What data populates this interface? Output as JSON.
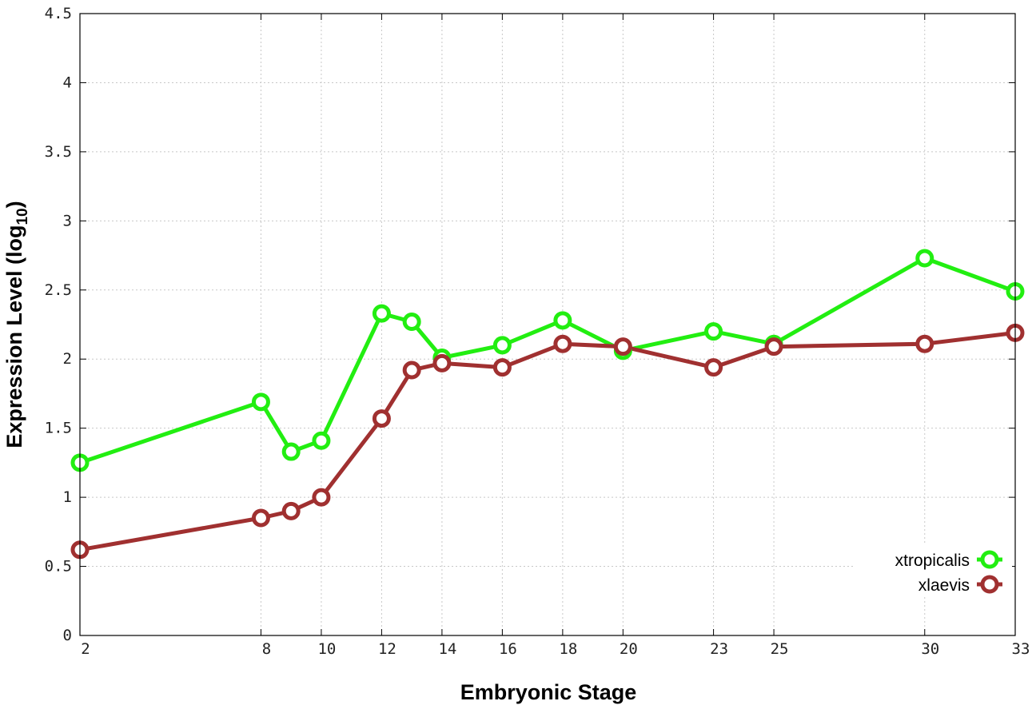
{
  "chart_data": {
    "type": "line",
    "xlabel": "Embryonic Stage",
    "ylabel_main": "Expression Level (log",
    "ylabel_sub": "10",
    "ylabel_close": ")",
    "x_ticks": [
      2,
      8,
      10,
      12,
      14,
      16,
      18,
      20,
      23,
      25,
      30,
      33
    ],
    "y_ticks": [
      {
        "value": 0,
        "label": "0"
      },
      {
        "value": 0.5,
        "label": "0.5"
      },
      {
        "value": 1,
        "label": "1"
      },
      {
        "value": 1.5,
        "label": "1.5"
      },
      {
        "value": 2,
        "label": "2"
      },
      {
        "value": 2.5,
        "label": "2.5"
      },
      {
        "value": 3,
        "label": "3"
      },
      {
        "value": 3.5,
        "label": "3.5"
      },
      {
        "value": 4,
        "label": "4"
      },
      {
        "value": 4.5,
        "label": "4.5"
      }
    ],
    "xlim": [
      2,
      33
    ],
    "ylim": [
      0,
      4.5
    ],
    "grid": true,
    "legend_position": "bottom-right",
    "series": [
      {
        "name": "xtropicalis",
        "color": "#22ee11",
        "x": [
          2,
          8,
          9,
          10,
          12,
          13,
          14,
          16,
          18,
          20,
          23,
          25,
          30,
          33
        ],
        "y": [
          1.25,
          1.69,
          1.33,
          1.41,
          2.33,
          2.27,
          2.01,
          2.1,
          2.28,
          2.06,
          2.2,
          2.11,
          2.73,
          2.49
        ]
      },
      {
        "name": "xlaevis",
        "color": "#a03030",
        "x": [
          2,
          8,
          9,
          10,
          12,
          13,
          14,
          16,
          18,
          20,
          23,
          25,
          30,
          33
        ],
        "y": [
          0.62,
          0.85,
          0.9,
          1.0,
          1.57,
          1.92,
          1.97,
          1.94,
          2.11,
          2.09,
          1.94,
          2.09,
          2.11,
          2.19
        ]
      }
    ]
  }
}
